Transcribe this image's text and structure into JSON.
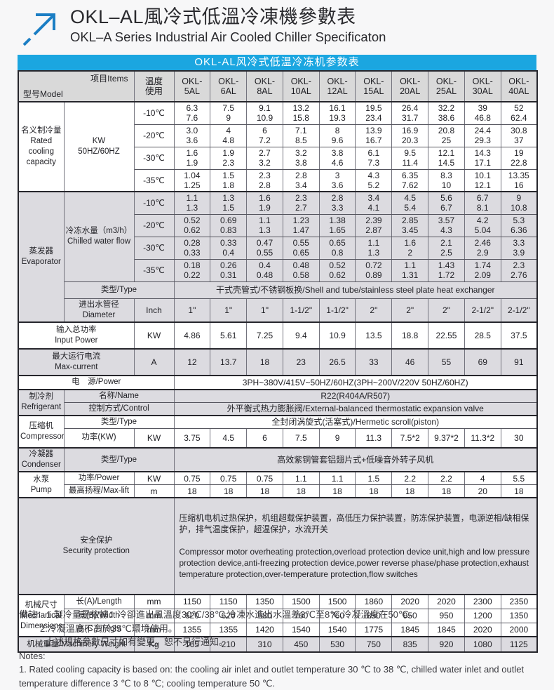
{
  "page": {
    "title_zh": "OKL–AL風冷式低溫冷凍機參數表",
    "title_en": "OKL–A Series Industrial Air Cooled Chiller Specificaton"
  },
  "colors": {
    "banner_blue": "#1ba6e0",
    "arrow_blue": "#1b7ec4",
    "header_gray": "#d9d9d9",
    "row_gray": "#dcdbe0"
  },
  "table": {
    "banner": "OKL-AL风冷式低温冷冻机参数表",
    "corner": {
      "model": "型号Model",
      "items": "项目Items"
    },
    "temp_header": "温度\n使用",
    "models": [
      "OKL-\n5AL",
      "OKL-\n6AL",
      "OKL-\n8AL",
      "OKL-\n10AL",
      "OKL-\n12AL",
      "OKL-\n15AL",
      "OKL-\n20AL",
      "OKL-\n25AL",
      "OKL-\n30AL",
      "OKL-\n40AL"
    ],
    "capacity": {
      "label": "名义制冷量\nRated\ncooling\ncapacity",
      "unit": "KW\n50HZ/60HZ",
      "rows": [
        {
          "temp": "-10℃",
          "values": [
            "6.3\n7.6",
            "7.5\n9",
            "9.1\n10.9",
            "13.2\n15.8",
            "16.1\n19.3",
            "19.5\n23.4",
            "26.4\n31.7",
            "32.2\n38.6",
            "39\n46.8",
            "52\n62.4"
          ]
        },
        {
          "temp": "-20℃",
          "values": [
            "3.0\n3.6",
            "4\n4.8",
            "6\n7.2",
            "7.1\n8.5",
            "8\n9.6",
            "13.9\n16.7",
            "16.9\n20.3",
            "20.8\n25",
            "24.4\n29.3",
            "30.8\n37"
          ]
        },
        {
          "temp": "-30℃",
          "values": [
            "1.6\n1.9",
            "1.9\n2.3",
            "2.7\n3.2",
            "3.2\n3.8",
            "3.8\n4.6",
            "6.1\n7.3",
            "9.5\n11.4",
            "12.1\n14.5",
            "14.3\n17.1",
            "19\n22.8"
          ]
        },
        {
          "temp": "-35℃",
          "values": [
            "1.04\n1.25",
            "1.5\n1.8",
            "2.3\n2.8",
            "2.8\n3.4",
            "3\n3.6",
            "4.3\n5.2",
            "6.35\n7.62",
            "8.3\n10",
            "10.1\n12.1",
            "13.35\n16"
          ]
        }
      ]
    },
    "evaporator": {
      "label": "蒸发器\nEvaporator",
      "flow_label": "冷冻水量（m3/h）\nChilled water flow",
      "rows": [
        {
          "temp": "-10℃",
          "values": [
            "1.1\n1.3",
            "1.3\n1.5",
            "1.6\n1.9",
            "2.3\n2.7",
            "2.8\n3.3",
            "3.4\n4.1",
            "4.5\n5.4",
            "5.6\n6.7",
            "6.7\n8.1",
            "9\n10.8"
          ]
        },
        {
          "temp": "-20℃",
          "values": [
            "0.52\n0.62",
            "0.69\n0.83",
            "1.1\n1.3",
            "1.23\n1.47",
            "1.38\n1.65",
            "2.39\n2.87",
            "2.85\n3.45",
            "3.57\n4.3",
            "4.2\n5.04",
            "5.3\n6.36"
          ]
        },
        {
          "temp": "-30℃",
          "values": [
            "0.28\n0.33",
            "0.33\n0.4",
            "0.47\n0.55",
            "0.55\n0.65",
            "0.65\n0.8",
            "1.1\n1.3",
            "1.6\n2",
            "2.1\n2.5",
            "2.46\n2.9",
            "3.3\n3.9"
          ]
        },
        {
          "temp": "-35℃",
          "values": [
            "0.18\n0.22",
            "0.26\n0.31",
            "0.4\n0.48",
            "0.48\n0.58",
            "0.52\n0.62",
            "0.72\n0.89",
            "1.1\n1.31",
            "1.43\n1.72",
            "1.74\n2.09",
            "2.3\n2.76"
          ]
        }
      ],
      "type_label": "类型/Type",
      "type_value": "干式壳管式/不锈钢板换/Shell and tube/stainless steel plate heat exchanger",
      "diameter_label": "进出水管径\nDiameter",
      "diameter_unit": "Inch",
      "diameter_values": [
        "1\"",
        "1\"",
        "1\"",
        "1-1/2\"",
        "1-1/2\"",
        "2\"",
        "2\"",
        "2\"",
        "2-1/2\"",
        "2-1/2\""
      ]
    },
    "input_power": {
      "label": "输入总功率\nInput Power",
      "unit": "KW",
      "values": [
        "4.86",
        "5.61",
        "7.25",
        "9.4",
        "10.9",
        "13.5",
        "18.8",
        "22.55",
        "28.5",
        "37.5"
      ]
    },
    "max_current": {
      "label": "最大运行电流\nMax-current",
      "unit": "A",
      "values": [
        "12",
        "13.7",
        "18",
        "23",
        "26.5",
        "33",
        "46",
        "55",
        "69",
        "91"
      ]
    },
    "power_supply": {
      "label": "电　源/Power",
      "value": "3PH~380V/415V~50HZ/60HZ(3PH~200V/220V  50HZ/60HZ)"
    },
    "refrigerant": {
      "label": "制冷剂\nRefrigerant",
      "name_label": "名称/Name",
      "name_value": "R22(R404A/R507)",
      "control_label": "控制方式/Control",
      "control_value": "外平衡式热力膨胀阀/External-balanced thermostatic expansion valve"
    },
    "compressor": {
      "label": "压缩机\nCompressor",
      "type_label": "类型/Type",
      "type_value": "全封闭涡旋式(活塞式)/Hermetic scroll(piston)",
      "power_label": "功率(KW)",
      "power_unit": "KW",
      "power_values": [
        "3.75",
        "4.5",
        "6",
        "7.5",
        "9",
        "11.3",
        "7.5*2",
        "9.37*2",
        "11.3*2",
        "30"
      ]
    },
    "condenser": {
      "label": "冷凝器\nCondenser",
      "type_label": "类型/Type",
      "type_value": "高效紫铜管套铝翅片式+低噪音外转子风机"
    },
    "pump": {
      "label": "水泵\nPump",
      "power_label": "功率/Power",
      "power_unit": "KW",
      "power_values": [
        "0.75",
        "0.75",
        "0.75",
        "1.1",
        "1.1",
        "1.5",
        "2.2",
        "2.2",
        "4",
        "5.5"
      ],
      "lift_label": "最高扬程/Max-lift",
      "lift_unit": "m",
      "lift_values": [
        "18",
        "18",
        "18",
        "18",
        "18",
        "18",
        "18",
        "18",
        "20",
        "18"
      ]
    },
    "security": {
      "label": "安全保护\nSecurity protection",
      "value_zh": "压缩机电机过热保护，机组超载保护装置，高低压力保护装置，防冻保护装置，电源逆相/缺相保护，排气温度保护，超温保护，水流开关",
      "value_en": " Compressor motor overheating protection,overload protection device unit,high and low pressure protection device,anti-freezing protection device,power reverse phase/phase protection,exhaust temperature protection,over-temperature protection,flow switches"
    },
    "mechanical": {
      "label": "机械尺寸\nMechanical\nDimensions",
      "rows": [
        {
          "label": "长(A)/Length",
          "unit": "mm",
          "values": [
            "1150",
            "1150",
            "1350",
            "1500",
            "1500",
            "1860",
            "2020",
            "2020",
            "2300",
            "2350"
          ]
        },
        {
          "label": "宽(B)/Width",
          "unit": "mm",
          "values": [
            "620",
            "620",
            "680",
            "760",
            "760",
            "850",
            "950",
            "950",
            "1200",
            "1350"
          ]
        },
        {
          "label": "高(C ) /Hight",
          "unit": "mm",
          "values": [
            "1355",
            "1355",
            "1420",
            "1540",
            "1540",
            "1775",
            "1845",
            "1845",
            "2020",
            "2000"
          ]
        }
      ]
    },
    "weight": {
      "label": "机械重量/Machinery Weight",
      "unit": "Kg",
      "values": [
        "165",
        "210",
        "310",
        "450",
        "530",
        "750",
        "835",
        "920",
        "1080",
        "1125"
      ]
    }
  },
  "notes": {
    "zh1": "備註：1.製冷量是依據：冷卻進出風溫度30℃/38℃,冷凍水進出水溫差3℃至8℃,冷凝溫度在50℃。",
    "zh2": "2.冷凝溫度不高於35℃環境使用。",
    "zh3": "上述規格參數尺寸如有變更，恕不另行通知。",
    "en_title": "Notes:",
    "en1": "1. Rated cooling capacity is based on: the cooling air inlet and outlet temperature 30 ℃ to 38 ℃, chilled water inlet and outlet temperature difference 3 ℃ to 8 ℃; cooling temperature 50 ℃."
  }
}
